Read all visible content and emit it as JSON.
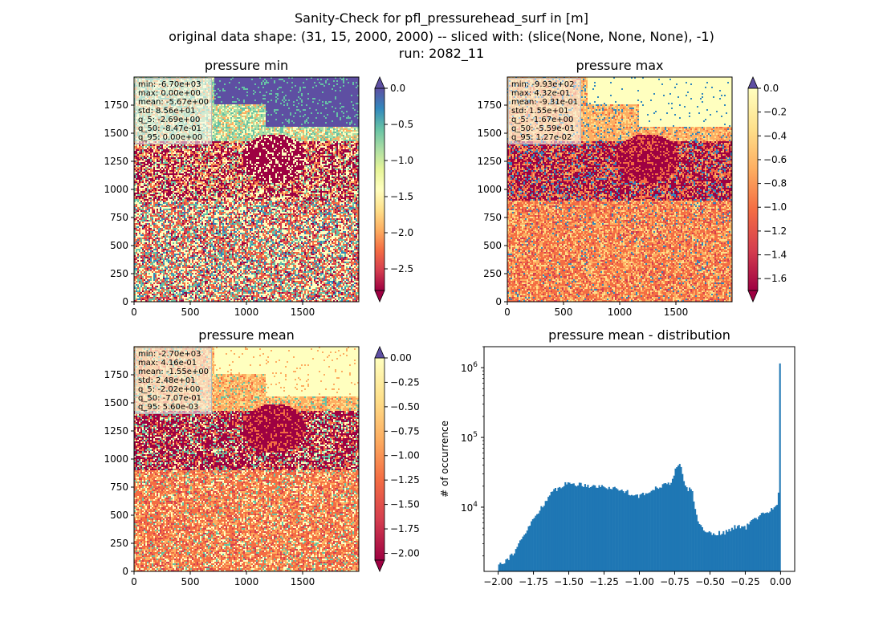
{
  "figure": {
    "title_lines": [
      "Sanity-Check for pfl_pressurehead_surf in [m]",
      "original data shape: (31, 15, 2000, 2000) -- sliced with: (slice(None, None, None), -1)",
      "run: 2082_11"
    ]
  },
  "chart_data": [
    {
      "type": "heatmap",
      "title": "pressure min",
      "xlim": [
        0,
        2000
      ],
      "ylim": [
        0,
        2000
      ],
      "xticks": [
        "0",
        "500",
        "1000",
        "1500"
      ],
      "yticks": [
        "0",
        "250",
        "500",
        "750",
        "1000",
        "1250",
        "1500",
        "1750"
      ],
      "colorbar": {
        "range": [
          -2.8,
          0.0
        ],
        "ticks": [
          "0.0",
          "−0.5",
          "−1.0",
          "−1.5",
          "−2.0",
          "−2.5"
        ],
        "tick_values": [
          0.0,
          -0.5,
          -1.0,
          -1.5,
          -2.0,
          -2.5
        ],
        "colormap": "Spectral",
        "extend": "both"
      },
      "stats": [
        "min: -6.70e+03",
        "max: 0.00e+00",
        "mean: -5.67e+00",
        "std: 8.56e+01",
        "q_5: -2.69e+00",
        "q_50: -8.47e-01",
        "q_95: 0.00e+00"
      ]
    },
    {
      "type": "heatmap",
      "title": "pressure max",
      "xlim": [
        0,
        2000
      ],
      "ylim": [
        0,
        2000
      ],
      "xticks": [
        "0",
        "500",
        "1000",
        "1500"
      ],
      "yticks": [
        "0",
        "250",
        "500",
        "750",
        "1000",
        "1250",
        "1500",
        "1750"
      ],
      "colorbar": {
        "range": [
          -1.7,
          0.0
        ],
        "ticks": [
          "0.0",
          "−0.2",
          "−0.4",
          "−0.6",
          "−0.8",
          "−1.0",
          "−1.2",
          "−1.4",
          "−1.6"
        ],
        "tick_values": [
          0.0,
          -0.2,
          -0.4,
          -0.6,
          -0.8,
          -1.0,
          -1.2,
          -1.4,
          -1.6
        ],
        "colormap": "Spectral",
        "extend": "both"
      },
      "stats": [
        "min: -9.93e+02",
        "max: 4.32e-01",
        "mean: -9.31e-01",
        "std: 1.55e+01",
        "q_5: -1.67e+00",
        "q_50: -5.59e-01",
        "q_95: 1.27e-02"
      ]
    },
    {
      "type": "heatmap",
      "title": "pressure mean",
      "xlim": [
        0,
        2000
      ],
      "ylim": [
        0,
        2000
      ],
      "xticks": [
        "0",
        "500",
        "1000",
        "1500"
      ],
      "yticks": [
        "0",
        "250",
        "500",
        "750",
        "1000",
        "1250",
        "1500",
        "1750"
      ],
      "colorbar": {
        "range": [
          -2.07,
          0.0
        ],
        "ticks": [
          "0.00",
          "−0.25",
          "−0.50",
          "−0.75",
          "−1.00",
          "−1.25",
          "−1.50",
          "−1.75",
          "−2.00"
        ],
        "tick_values": [
          0.0,
          -0.25,
          -0.5,
          -0.75,
          -1.0,
          -1.25,
          -1.5,
          -1.75,
          -2.0
        ],
        "colormap": "Spectral",
        "extend": "both"
      },
      "stats": [
        "min: -2.70e+03",
        "max: 4.16e-01",
        "mean: -1.55e+00",
        "std: 2.48e+01",
        "q_5: -2.02e+00",
        "q_50: -7.07e-01",
        "q_95: 5.60e-03"
      ]
    },
    {
      "type": "bar",
      "title": "pressure mean - distribution",
      "ylabel": "# of occurrence",
      "yscale": "log",
      "xlim": [
        -2.1,
        0.1
      ],
      "ylim": [
        1200,
        2000000
      ],
      "xticks": [
        "−2.00",
        "−1.75",
        "−1.50",
        "−1.25",
        "−1.00",
        "−0.75",
        "−0.50",
        "−0.25",
        "0.00"
      ],
      "xtick_values": [
        -2.0,
        -1.75,
        -1.5,
        -1.25,
        -1.0,
        -0.75,
        -0.5,
        -0.25,
        0.0
      ],
      "yticks": [
        "10^4",
        "10^5",
        "10^6"
      ],
      "ytick_values": [
        10000,
        100000,
        1000000
      ],
      "bin_range": [
        -2.0,
        0.0
      ],
      "bins": 200,
      "color": "#1f77b4",
      "profile_x": [
        -2.0,
        -1.95,
        -1.9,
        -1.85,
        -1.8,
        -1.75,
        -1.7,
        -1.65,
        -1.6,
        -1.55,
        -1.5,
        -1.45,
        -1.4,
        -1.35,
        -1.3,
        -1.25,
        -1.2,
        -1.15,
        -1.1,
        -1.05,
        -1.0,
        -0.95,
        -0.9,
        -0.85,
        -0.8,
        -0.78,
        -0.76,
        -0.74,
        -0.72,
        -0.7,
        -0.68,
        -0.66,
        -0.64,
        -0.62,
        -0.6,
        -0.58,
        -0.55,
        -0.5,
        -0.45,
        -0.4,
        -0.35,
        -0.3,
        -0.25,
        -0.2,
        -0.15,
        -0.1,
        -0.05,
        -0.02,
        -0.01,
        0.0
      ],
      "profile_y": [
        1550,
        1700,
        2100,
        3000,
        4500,
        6800,
        9500,
        13500,
        17500,
        20500,
        22000,
        21500,
        21000,
        20500,
        20000,
        19500,
        19000,
        18000,
        17000,
        15500,
        14500,
        15500,
        18500,
        20500,
        21000,
        23000,
        28000,
        37000,
        42000,
        33000,
        22000,
        17000,
        20000,
        15000,
        8000,
        6000,
        4800,
        4300,
        4200,
        4300,
        4800,
        5500,
        5000,
        6500,
        7500,
        8500,
        9500,
        12000,
        24000,
        1150000
      ]
    }
  ]
}
